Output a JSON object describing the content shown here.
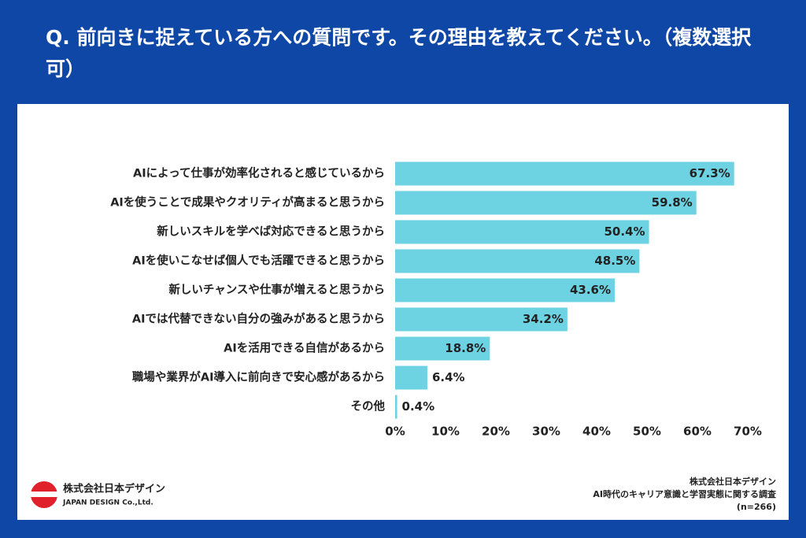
{
  "chart_data": {
    "type": "barh",
    "title": "Q. 前向きに捉えている方への質問です。その理由を教えてください。（複数選択可）",
    "categories": [
      "AIによって仕事が効率化されると感じているから",
      "AIを使うことで成果やクオリティが高まると思うから",
      "新しいスキルを学べば対応できると思うから",
      "AIを使いこなせば個人でも活躍できると思うから",
      "新しいチャンスや仕事が増えると思うから",
      "AIでは代替できない自分の強みがあると思うから",
      "AIを活用できる自信があるから",
      "職場や業界がAI導入に前向きで安心感があるから",
      "その他"
    ],
    "values": [
      67.3,
      59.8,
      50.4,
      48.5,
      43.6,
      34.2,
      18.8,
      6.4,
      0.4
    ],
    "value_labels": [
      "67.3%",
      "59.8%",
      "50.4%",
      "48.5%",
      "43.6%",
      "34.2%",
      "18.8%",
      "6.4%",
      "0.4%"
    ],
    "color": "#6dd3e3",
    "xlim": [
      0,
      70
    ],
    "xticks": [
      {
        "value": 0,
        "label": "0%"
      },
      {
        "value": 10,
        "label": "10%"
      },
      {
        "value": 20,
        "label": "20%"
      },
      {
        "value": 30,
        "label": "30%"
      },
      {
        "value": 40,
        "label": "40%"
      },
      {
        "value": 50,
        "label": "50%"
      },
      {
        "value": 60,
        "label": "60%"
      },
      {
        "value": 70,
        "label": "70%"
      }
    ]
  },
  "footer": {
    "logo_text": "株式会社日本デザイン",
    "logo_subtext": "JAPAN DESIGN Co.,Ltd.",
    "source_lines": [
      "株式会社日本デザイン",
      "AI時代のキャリア意識と学習実態に関する調査",
      "(n=266)"
    ]
  }
}
